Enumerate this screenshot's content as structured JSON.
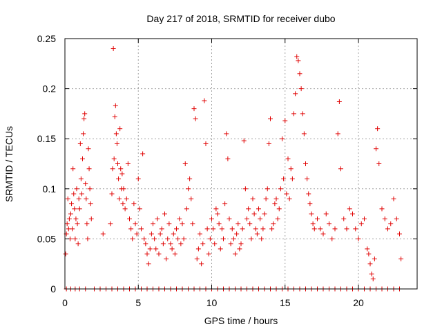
{
  "chart_data": {
    "type": "scatter",
    "title": "Day 217 of 2018, SRMTID for receiver dubo",
    "xlabel": "GPS time / hours",
    "ylabel": "SRMTID / TECUs",
    "xlim": [
      0,
      24
    ],
    "ylim": [
      0,
      0.25
    ],
    "x_ticks": [
      0,
      5,
      10,
      15,
      20
    ],
    "y_ticks": [
      0,
      0.05,
      0.1,
      0.15,
      0.2,
      0.25
    ],
    "x_tick_labels": [
      "0",
      "5",
      "10",
      "15",
      "20"
    ],
    "y_tick_labels": [
      "0",
      "0.05",
      "0.1",
      "0.15",
      "0.2",
      "0.25"
    ],
    "grid": true,
    "marker": "+",
    "marker_color": "#e00000",
    "series": [
      {
        "name": "SRMTID",
        "points": [
          [
            0.05,
            0.035
          ],
          [
            0.1,
            0.055
          ],
          [
            0.15,
            0.065
          ],
          [
            0.2,
            0.09
          ],
          [
            0.25,
            0.06
          ],
          [
            0.3,
            0.07
          ],
          [
            0.35,
            0.05
          ],
          [
            0.4,
            0.075
          ],
          [
            0.45,
            0.085
          ],
          [
            0.5,
            0.06
          ],
          [
            0.55,
            0.12
          ],
          [
            0.6,
            0.095
          ],
          [
            0.65,
            0.08
          ],
          [
            0.7,
            0.05
          ],
          [
            0.75,
            0.07
          ],
          [
            0.8,
            0.1
          ],
          [
            0.85,
            0.065
          ],
          [
            0.9,
            0.045
          ],
          [
            0.95,
            0.09
          ],
          [
            1.0,
            0.08
          ],
          [
            1.05,
            0.145
          ],
          [
            1.1,
            0.11
          ],
          [
            1.15,
            0.095
          ],
          [
            1.2,
            0.13
          ],
          [
            1.25,
            0.155
          ],
          [
            1.3,
            0.17
          ],
          [
            1.35,
            0.175
          ],
          [
            1.4,
            0.105
          ],
          [
            1.45,
            0.09
          ],
          [
            1.5,
            0.065
          ],
          [
            1.55,
            0.05
          ],
          [
            1.6,
            0.14
          ],
          [
            1.65,
            0.12
          ],
          [
            1.7,
            0.1
          ],
          [
            1.75,
            0.085
          ],
          [
            1.8,
            0.07
          ],
          [
            2.6,
            0.055
          ],
          [
            3.1,
            0.065
          ],
          [
            3.2,
            0.095
          ],
          [
            3.25,
            0.12
          ],
          [
            3.3,
            0.24
          ],
          [
            3.35,
            0.13
          ],
          [
            3.4,
            0.172
          ],
          [
            3.45,
            0.183
          ],
          [
            3.5,
            0.155
          ],
          [
            3.55,
            0.145
          ],
          [
            3.6,
            0.125
          ],
          [
            3.65,
            0.11
          ],
          [
            3.7,
            0.09
          ],
          [
            3.75,
            0.16
          ],
          [
            3.8,
            0.12
          ],
          [
            3.85,
            0.1
          ],
          [
            3.9,
            0.115
          ],
          [
            3.95,
            0.085
          ],
          [
            4.0,
            0.1
          ],
          [
            4.1,
            0.08
          ],
          [
            4.2,
            0.09
          ],
          [
            4.3,
            0.125
          ],
          [
            4.4,
            0.07
          ],
          [
            4.5,
            0.06
          ],
          [
            4.6,
            0.05
          ],
          [
            4.7,
            0.085
          ],
          [
            4.8,
            0.065
          ],
          [
            4.9,
            0.055
          ],
          [
            5.0,
            0.11
          ],
          [
            5.1,
            0.08
          ],
          [
            5.2,
            0.06
          ],
          [
            5.3,
            0.135
          ],
          [
            5.4,
            0.05
          ],
          [
            5.5,
            0.045
          ],
          [
            5.6,
            0.035
          ],
          [
            5.7,
            0.025
          ],
          [
            5.8,
            0.04
          ],
          [
            5.9,
            0.055
          ],
          [
            6.0,
            0.065
          ],
          [
            6.1,
            0.05
          ],
          [
            6.2,
            0.04
          ],
          [
            6.3,
            0.07
          ],
          [
            6.4,
            0.035
          ],
          [
            6.5,
            0.055
          ],
          [
            6.6,
            0.06
          ],
          [
            6.7,
            0.045
          ],
          [
            6.8,
            0.075
          ],
          [
            6.9,
            0.03
          ],
          [
            7.0,
            0.05
          ],
          [
            7.1,
            0.065
          ],
          [
            7.2,
            0.045
          ],
          [
            7.3,
            0.04
          ],
          [
            7.4,
            0.055
          ],
          [
            7.5,
            0.035
          ],
          [
            7.6,
            0.06
          ],
          [
            7.7,
            0.05
          ],
          [
            7.8,
            0.07
          ],
          [
            7.9,
            0.045
          ],
          [
            8.0,
            0.065
          ],
          [
            8.1,
            0.05
          ],
          [
            8.2,
            0.125
          ],
          [
            8.3,
            0.08
          ],
          [
            8.4,
            0.1
          ],
          [
            8.5,
            0.11
          ],
          [
            8.6,
            0.09
          ],
          [
            8.7,
            0.065
          ],
          [
            8.8,
            0.18
          ],
          [
            8.9,
            0.17
          ],
          [
            9.0,
            0.03
          ],
          [
            9.1,
            0.04
          ],
          [
            9.2,
            0.055
          ],
          [
            9.3,
            0.025
          ],
          [
            9.4,
            0.045
          ],
          [
            9.5,
            0.188
          ],
          [
            9.6,
            0.145
          ],
          [
            9.7,
            0.06
          ],
          [
            9.8,
            0.035
          ],
          [
            9.9,
            0.05
          ],
          [
            10.0,
            0.07
          ],
          [
            10.1,
            0.06
          ],
          [
            10.2,
            0.045
          ],
          [
            10.3,
            0.08
          ],
          [
            10.4,
            0.075
          ],
          [
            10.5,
            0.065
          ],
          [
            10.6,
            0.04
          ],
          [
            10.7,
            0.06
          ],
          [
            10.8,
            0.05
          ],
          [
            10.9,
            0.085
          ],
          [
            11.0,
            0.155
          ],
          [
            11.1,
            0.13
          ],
          [
            11.2,
            0.07
          ],
          [
            11.3,
            0.045
          ],
          [
            11.4,
            0.06
          ],
          [
            11.5,
            0.05
          ],
          [
            11.6,
            0.035
          ],
          [
            11.7,
            0.055
          ],
          [
            11.8,
            0.065
          ],
          [
            11.9,
            0.04
          ],
          [
            12.0,
            0.045
          ],
          [
            12.1,
            0.06
          ],
          [
            12.2,
            0.148
          ],
          [
            12.3,
            0.1
          ],
          [
            12.4,
            0.07
          ],
          [
            12.5,
            0.08
          ],
          [
            12.6,
            0.065
          ],
          [
            12.7,
            0.05
          ],
          [
            12.8,
            0.09
          ],
          [
            12.9,
            0.075
          ],
          [
            13.0,
            0.06
          ],
          [
            13.1,
            0.055
          ],
          [
            13.2,
            0.08
          ],
          [
            13.3,
            0.07
          ],
          [
            13.4,
            0.05
          ],
          [
            13.5,
            0.06
          ],
          [
            13.6,
            0.075
          ],
          [
            13.7,
            0.09
          ],
          [
            13.8,
            0.1
          ],
          [
            13.9,
            0.145
          ],
          [
            14.0,
            0.17
          ],
          [
            14.1,
            0.06
          ],
          [
            14.2,
            0.065
          ],
          [
            14.3,
            0.085
          ],
          [
            14.4,
            0.09
          ],
          [
            14.5,
            0.07
          ],
          [
            14.6,
            0.08
          ],
          [
            14.7,
            0.1
          ],
          [
            14.8,
            0.15
          ],
          [
            14.9,
            0.11
          ],
          [
            15.0,
            0.168
          ],
          [
            15.1,
            0.095
          ],
          [
            15.2,
            0.13
          ],
          [
            15.3,
            0.09
          ],
          [
            15.4,
            0.12
          ],
          [
            15.5,
            0.11
          ],
          [
            15.6,
            0.175
          ],
          [
            15.7,
            0.195
          ],
          [
            15.8,
            0.232
          ],
          [
            15.9,
            0.228
          ],
          [
            16.0,
            0.215
          ],
          [
            16.1,
            0.2
          ],
          [
            16.2,
            0.175
          ],
          [
            16.3,
            0.155
          ],
          [
            16.4,
            0.125
          ],
          [
            16.5,
            0.11
          ],
          [
            16.6,
            0.095
          ],
          [
            16.7,
            0.085
          ],
          [
            16.8,
            0.075
          ],
          [
            16.9,
            0.065
          ],
          [
            17.0,
            0.06
          ],
          [
            17.2,
            0.07
          ],
          [
            17.4,
            0.06
          ],
          [
            17.6,
            0.055
          ],
          [
            17.8,
            0.075
          ],
          [
            18.0,
            0.065
          ],
          [
            18.2,
            0.05
          ],
          [
            18.4,
            0.06
          ],
          [
            18.6,
            0.155
          ],
          [
            18.7,
            0.187
          ],
          [
            18.8,
            0.12
          ],
          [
            19.0,
            0.07
          ],
          [
            19.2,
            0.06
          ],
          [
            19.4,
            0.08
          ],
          [
            19.6,
            0.075
          ],
          [
            19.8,
            0.06
          ],
          [
            20.0,
            0.05
          ],
          [
            20.2,
            0.065
          ],
          [
            20.4,
            0.07
          ],
          [
            20.6,
            0.04
          ],
          [
            20.7,
            0.035
          ],
          [
            20.8,
            0.025
          ],
          [
            20.9,
            0.015
          ],
          [
            21.0,
            0.01
          ],
          [
            21.1,
            0.03
          ],
          [
            21.2,
            0.14
          ],
          [
            21.3,
            0.16
          ],
          [
            21.4,
            0.125
          ],
          [
            21.6,
            0.08
          ],
          [
            21.8,
            0.07
          ],
          [
            22.0,
            0.06
          ],
          [
            22.2,
            0.065
          ],
          [
            22.4,
            0.09
          ],
          [
            22.6,
            0.07
          ],
          [
            22.8,
            0.055
          ],
          [
            22.9,
            0.03
          ]
        ]
      }
    ],
    "zero_markers_x": [
      0.1,
      0.4,
      0.7,
      1.0,
      1.4,
      2.0,
      2.4,
      2.8,
      3.2,
      3.6,
      4.0,
      4.4,
      4.8,
      5.2,
      5.6,
      6.0,
      6.4,
      6.8,
      7.2,
      7.6,
      8.0,
      8.4,
      8.8,
      9.2,
      9.6,
      10.0,
      10.4,
      10.8,
      11.2,
      11.6,
      12.0,
      12.4,
      12.8,
      13.2,
      13.6,
      14.0,
      14.4,
      14.8,
      15.2,
      15.6,
      16.0,
      16.4,
      16.8,
      17.2,
      17.6,
      18.0,
      18.4,
      18.8,
      19.2,
      19.6,
      20.0,
      20.4,
      20.8,
      21.2,
      21.6,
      22.0,
      22.4,
      22.8
    ]
  }
}
